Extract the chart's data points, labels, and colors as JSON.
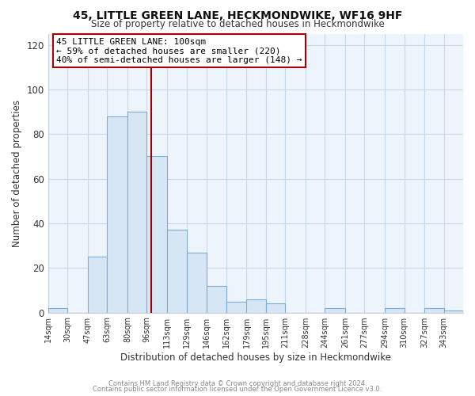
{
  "title": "45, LITTLE GREEN LANE, HECKMONDWIKE, WF16 9HF",
  "subtitle": "Size of property relative to detached houses in Heckmondwike",
  "xlabel": "Distribution of detached houses by size in Heckmondwike",
  "ylabel": "Number of detached properties",
  "bin_labels": [
    "14sqm",
    "30sqm",
    "47sqm",
    "63sqm",
    "80sqm",
    "96sqm",
    "113sqm",
    "129sqm",
    "146sqm",
    "162sqm",
    "179sqm",
    "195sqm",
    "211sqm",
    "228sqm",
    "244sqm",
    "261sqm",
    "277sqm",
    "294sqm",
    "310sqm",
    "327sqm",
    "343sqm"
  ],
  "bin_edges": [
    14,
    30,
    47,
    63,
    80,
    96,
    113,
    129,
    146,
    162,
    179,
    195,
    211,
    228,
    244,
    261,
    277,
    294,
    310,
    327,
    343,
    359
  ],
  "counts": [
    2,
    0,
    25,
    88,
    90,
    70,
    37,
    27,
    12,
    5,
    6,
    4,
    0,
    0,
    2,
    0,
    0,
    2,
    0,
    2,
    1
  ],
  "bar_color": "#d6e6f5",
  "bar_edge_color": "#7aaed6",
  "vline_x": 100,
  "vline_color": "#990000",
  "annotation_box_color": "#aa0000",
  "annotation_line1": "45 LITTLE GREEN LANE: 100sqm",
  "annotation_line2": "← 59% of detached houses are smaller (220)",
  "annotation_line3": "40% of semi-detached houses are larger (148) →",
  "ylim": [
    0,
    125
  ],
  "yticks": [
    0,
    20,
    40,
    60,
    80,
    100,
    120
  ],
  "footer1": "Contains HM Land Registry data © Crown copyright and database right 2024.",
  "footer2": "Contains public sector information licensed under the Open Government Licence v3.0.",
  "bg_color": "#ffffff",
  "plot_bg_color": "#eef4fb",
  "grid_color": "#c5d8ec"
}
